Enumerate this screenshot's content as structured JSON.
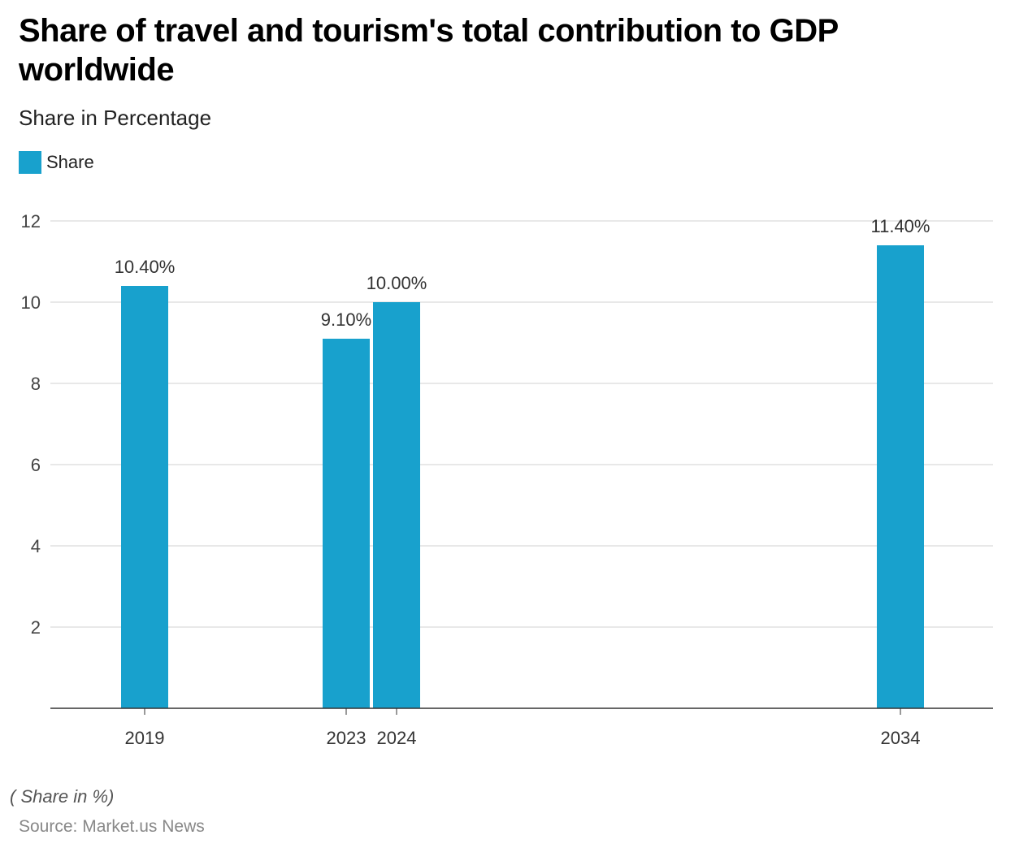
{
  "title": "Share of travel and tourism's total contribution to GDP worldwide",
  "subtitle": "Share in Percentage",
  "note": "( Share in %)",
  "source": "Source: Market.us News",
  "colors": {
    "bar": "#18a1cd",
    "grid": "#d0d0d0",
    "axis": "#333333"
  },
  "chart_data": {
    "type": "bar",
    "title": "Share of travel and tourism's total contribution to GDP worldwide",
    "subtitle": "Share in Percentage",
    "categories": [
      "2019",
      "2023",
      "2024",
      "2034"
    ],
    "x": [
      2019,
      2023,
      2024,
      2034
    ],
    "series": [
      {
        "name": "Share",
        "values": [
          10.4,
          9.1,
          10.0,
          11.4
        ]
      }
    ],
    "data_labels": [
      "10.40%",
      "9.10%",
      "10.00%",
      "11.40%"
    ],
    "ylim": [
      0,
      12
    ],
    "yticks": [
      2,
      4,
      6,
      8,
      10,
      12
    ],
    "grid": true,
    "legend": "top-left",
    "xlabel": "",
    "ylabel": ""
  }
}
